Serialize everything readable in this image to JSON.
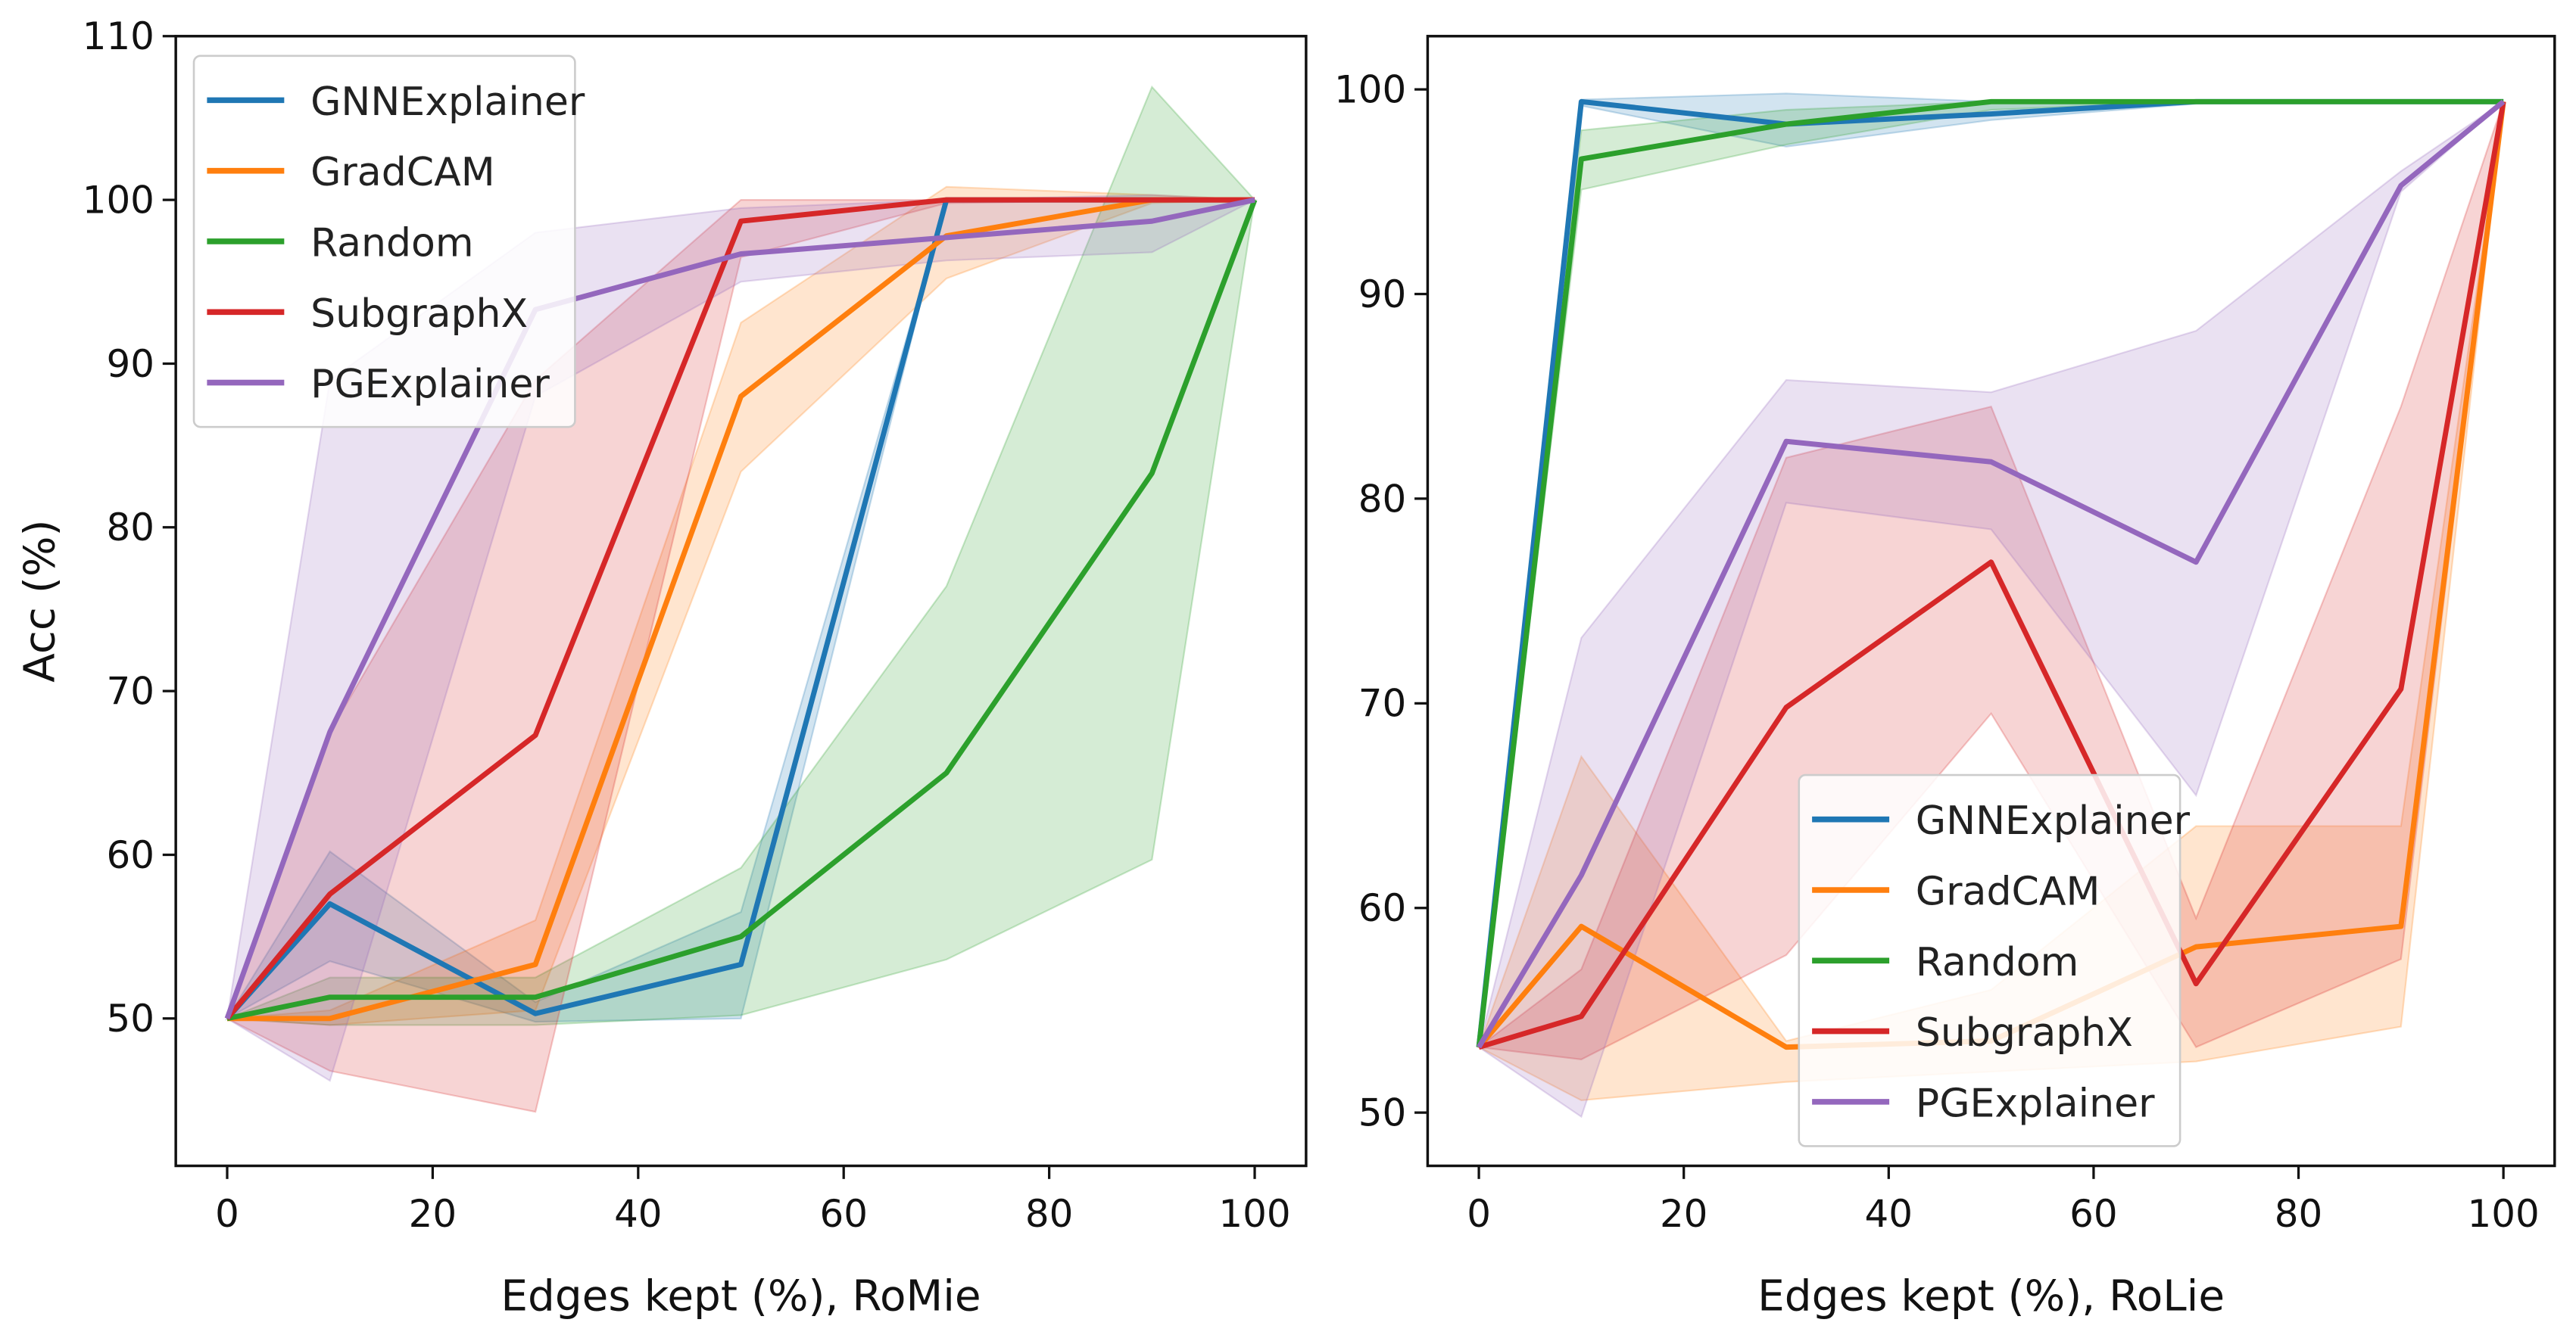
{
  "chart_data": [
    {
      "type": "line",
      "xlabel": "Edges kept (%), RoMie",
      "ylabel": "Acc (%)",
      "xlim": [
        -5,
        105
      ],
      "ylim": [
        41,
        110
      ],
      "xticks": [
        0,
        20,
        40,
        60,
        80,
        100
      ],
      "yticks": [
        50,
        60,
        70,
        80,
        90,
        100,
        110
      ],
      "legend": "top-left",
      "grid": false,
      "x": [
        0,
        10,
        30,
        50,
        70,
        90,
        100
      ],
      "series": [
        {
          "name": "GNNExplainer",
          "color": "#1f77b4",
          "values": [
            50,
            57,
            50.3,
            53.3,
            100,
            100,
            100
          ],
          "lower": [
            50,
            53.5,
            49.8,
            50,
            100,
            100,
            100
          ],
          "upper": [
            50,
            60.2,
            51,
            56.5,
            100,
            100,
            100
          ]
        },
        {
          "name": "GradCAM",
          "color": "#ff7f0e",
          "values": [
            50,
            50,
            53.3,
            88,
            97.8,
            100,
            100
          ],
          "lower": [
            50,
            49.6,
            50.5,
            83.4,
            95.2,
            99.8,
            100
          ],
          "upper": [
            50,
            50.5,
            56,
            92.5,
            100.8,
            100.3,
            100
          ]
        },
        {
          "name": "Random",
          "color": "#2ca02c",
          "values": [
            50,
            51.3,
            51.3,
            55,
            65,
            83.3,
            100
          ],
          "lower": [
            50,
            49.6,
            49.6,
            50.2,
            53.6,
            59.7,
            100
          ],
          "upper": [
            50,
            52.5,
            52.5,
            59.2,
            76.4,
            106.9,
            100
          ]
        },
        {
          "name": "SubgraphX",
          "color": "#d62728",
          "values": [
            50,
            57.6,
            67.3,
            98.7,
            100,
            100,
            100
          ],
          "lower": [
            50,
            46.8,
            44.3,
            96.5,
            99.8,
            100,
            100
          ],
          "upper": [
            50,
            67.5,
            89,
            100,
            100,
            100,
            100
          ]
        },
        {
          "name": "PGExplainer",
          "color": "#9467bd",
          "values": [
            50,
            67.5,
            93.3,
            96.7,
            97.7,
            98.7,
            100
          ],
          "lower": [
            50,
            46.2,
            88,
            95,
            96.3,
            96.8,
            100
          ],
          "upper": [
            50,
            89,
            98,
            99.5,
            100,
            100.3,
            100
          ]
        }
      ]
    },
    {
      "type": "line",
      "xlabel": "Edges kept (%), RoLie",
      "ylabel": "",
      "xlim": [
        -5,
        105
      ],
      "ylim": [
        47.4,
        102.6
      ],
      "xticks": [
        0,
        20,
        40,
        60,
        80,
        100
      ],
      "yticks": [
        50,
        60,
        70,
        80,
        90,
        100
      ],
      "legend": "lower-center",
      "grid": false,
      "x": [
        0,
        10,
        30,
        50,
        70,
        90,
        100
      ],
      "series": [
        {
          "name": "GNNExplainer",
          "color": "#1f77b4",
          "values": [
            53.2,
            99.4,
            98.3,
            98.8,
            99.4,
            99.4,
            99.4
          ],
          "lower": [
            53.2,
            99.2,
            97.2,
            98.5,
            99.3,
            99.4,
            99.4
          ],
          "upper": [
            53.2,
            99.5,
            99.8,
            99.4,
            99.4,
            99.4,
            99.4
          ]
        },
        {
          "name": "GradCAM",
          "color": "#ff7f0e",
          "values": [
            53.2,
            59.1,
            53.2,
            53.5,
            58.1,
            59.1,
            99.4
          ],
          "lower": [
            53.2,
            50.6,
            51.5,
            52,
            52.5,
            54.2,
            99.4
          ],
          "upper": [
            53.2,
            67.4,
            53.5,
            56,
            64,
            64,
            99.4
          ]
        },
        {
          "name": "Random",
          "color": "#2ca02c",
          "values": [
            53.2,
            96.6,
            98.3,
            99.4,
            99.4,
            99.4,
            99.4
          ],
          "lower": [
            53.2,
            95.1,
            97.3,
            99,
            99.4,
            99.4,
            99.4
          ],
          "upper": [
            53.2,
            98,
            99,
            99.4,
            99.4,
            99.4,
            99.4
          ]
        },
        {
          "name": "SubgraphX",
          "color": "#d62728",
          "values": [
            53.2,
            54.7,
            69.8,
            76.9,
            56.3,
            70.7,
            99.4
          ],
          "lower": [
            53.2,
            52.6,
            57.7,
            69.5,
            53.2,
            57.5,
            99.4
          ],
          "upper": [
            53.2,
            57,
            82,
            84.5,
            59.5,
            84.5,
            99.4
          ]
        },
        {
          "name": "PGExplainer",
          "color": "#9467bd",
          "values": [
            53.2,
            61.6,
            82.8,
            81.8,
            76.9,
            95.3,
            99.4
          ],
          "lower": [
            53.2,
            49.8,
            79.8,
            78.5,
            65.5,
            95,
            99.4
          ],
          "upper": [
            53.2,
            73.2,
            85.8,
            85.2,
            88.2,
            96,
            99.4
          ]
        }
      ]
    }
  ]
}
